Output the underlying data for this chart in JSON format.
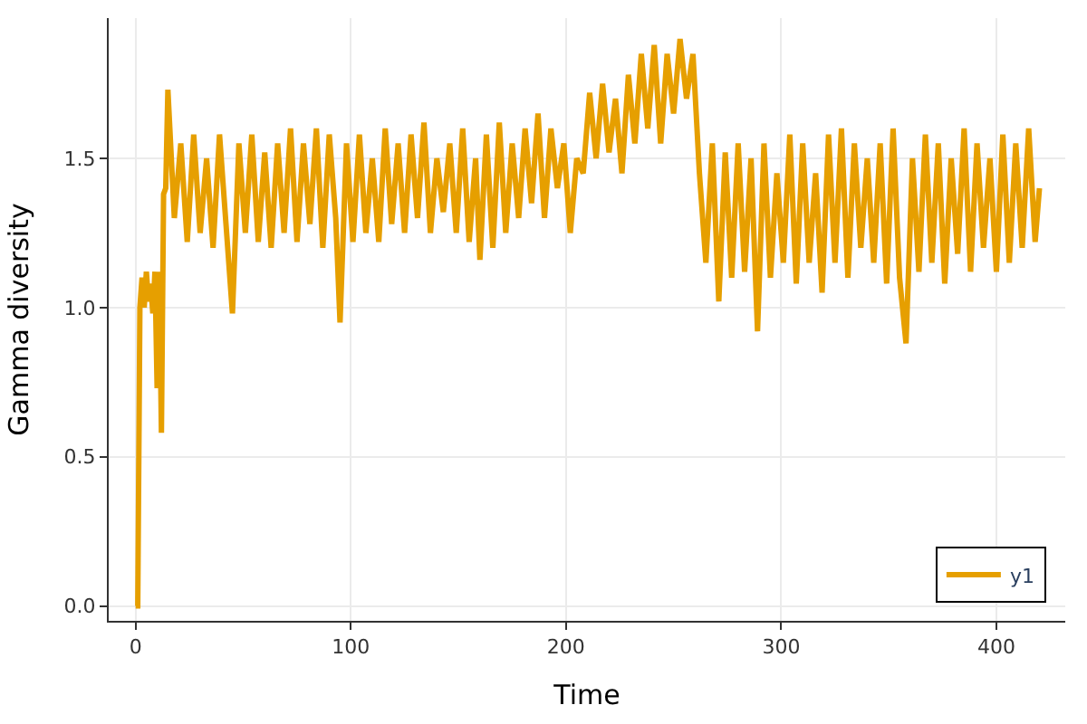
{
  "chart_data": {
    "type": "line",
    "xlabel": "Time",
    "ylabel": "Gamma diversity",
    "xlim": [
      -12.5,
      432
    ],
    "ylim": [
      -0.05,
      1.97
    ],
    "xticks": [
      0,
      100,
      200,
      300,
      400
    ],
    "yticks": [
      {
        "value": 0,
        "label": "0.0"
      },
      {
        "value": 0.5,
        "label": "0.5"
      },
      {
        "value": 1,
        "label": "1.0"
      },
      {
        "value": 1.5,
        "label": "1.5"
      }
    ],
    "grid": true,
    "legend": "bottom right",
    "line_style": "solid",
    "x": [
      0,
      1,
      2,
      3,
      4,
      5,
      6,
      7,
      8,
      9,
      10,
      11,
      12,
      13,
      14,
      15,
      18,
      21,
      24,
      27,
      30,
      33,
      36,
      39,
      42,
      45,
      48,
      51,
      54,
      57,
      60,
      63,
      66,
      69,
      72,
      75,
      78,
      81,
      84,
      87,
      90,
      93,
      95,
      98,
      101,
      104,
      107,
      110,
      113,
      116,
      119,
      122,
      125,
      128,
      131,
      134,
      137,
      140,
      143,
      146,
      149,
      152,
      155,
      158,
      160,
      163,
      166,
      169,
      172,
      175,
      178,
      181,
      184,
      187,
      190,
      193,
      196,
      199,
      202,
      205,
      208,
      211,
      214,
      217,
      220,
      223,
      226,
      229,
      232,
      235,
      238,
      241,
      244,
      247,
      250,
      253,
      256,
      259,
      262,
      265,
      268,
      271,
      274,
      277,
      280,
      283,
      286,
      289,
      292,
      295,
      298,
      301,
      304,
      307,
      310,
      313,
      316,
      319,
      322,
      325,
      328,
      331,
      334,
      337,
      340,
      343,
      346,
      349,
      352,
      355,
      358,
      361,
      364,
      367,
      370,
      373,
      376,
      379,
      382,
      385,
      388,
      391,
      394,
      397,
      400,
      403,
      406,
      409,
      412,
      415,
      418,
      420
    ],
    "series": [
      {
        "name": "y1",
        "color": "#e69f00",
        "values": [
          0,
          0,
          1.0,
          1.1,
          1.0,
          1.12,
          1.02,
          1.08,
          0.98,
          1.12,
          0.73,
          1.12,
          0.58,
          1.38,
          1.4,
          1.73,
          1.3,
          1.55,
          1.22,
          1.58,
          1.25,
          1.5,
          1.2,
          1.58,
          1.28,
          0.98,
          1.55,
          1.25,
          1.58,
          1.22,
          1.52,
          1.2,
          1.55,
          1.25,
          1.6,
          1.22,
          1.55,
          1.28,
          1.6,
          1.2,
          1.58,
          1.3,
          0.95,
          1.55,
          1.22,
          1.58,
          1.25,
          1.5,
          1.22,
          1.6,
          1.28,
          1.55,
          1.25,
          1.58,
          1.3,
          1.62,
          1.25,
          1.5,
          1.32,
          1.55,
          1.25,
          1.6,
          1.22,
          1.5,
          1.16,
          1.58,
          1.2,
          1.62,
          1.25,
          1.55,
          1.3,
          1.6,
          1.35,
          1.65,
          1.3,
          1.6,
          1.4,
          1.55,
          1.25,
          1.5,
          1.45,
          1.72,
          1.5,
          1.75,
          1.52,
          1.7,
          1.45,
          1.78,
          1.55,
          1.85,
          1.6,
          1.88,
          1.55,
          1.85,
          1.65,
          1.9,
          1.7,
          1.85,
          1.45,
          1.15,
          1.55,
          1.02,
          1.52,
          1.1,
          1.55,
          1.12,
          1.5,
          0.92,
          1.55,
          1.1,
          1.45,
          1.15,
          1.58,
          1.08,
          1.55,
          1.15,
          1.45,
          1.05,
          1.58,
          1.15,
          1.6,
          1.1,
          1.55,
          1.2,
          1.5,
          1.15,
          1.55,
          1.08,
          1.6,
          1.1,
          0.88,
          1.5,
          1.12,
          1.58,
          1.15,
          1.55,
          1.08,
          1.5,
          1.18,
          1.6,
          1.12,
          1.55,
          1.2,
          1.5,
          1.12,
          1.58,
          1.15,
          1.55,
          1.2,
          1.6,
          1.22,
          1.4
        ]
      }
    ]
  }
}
